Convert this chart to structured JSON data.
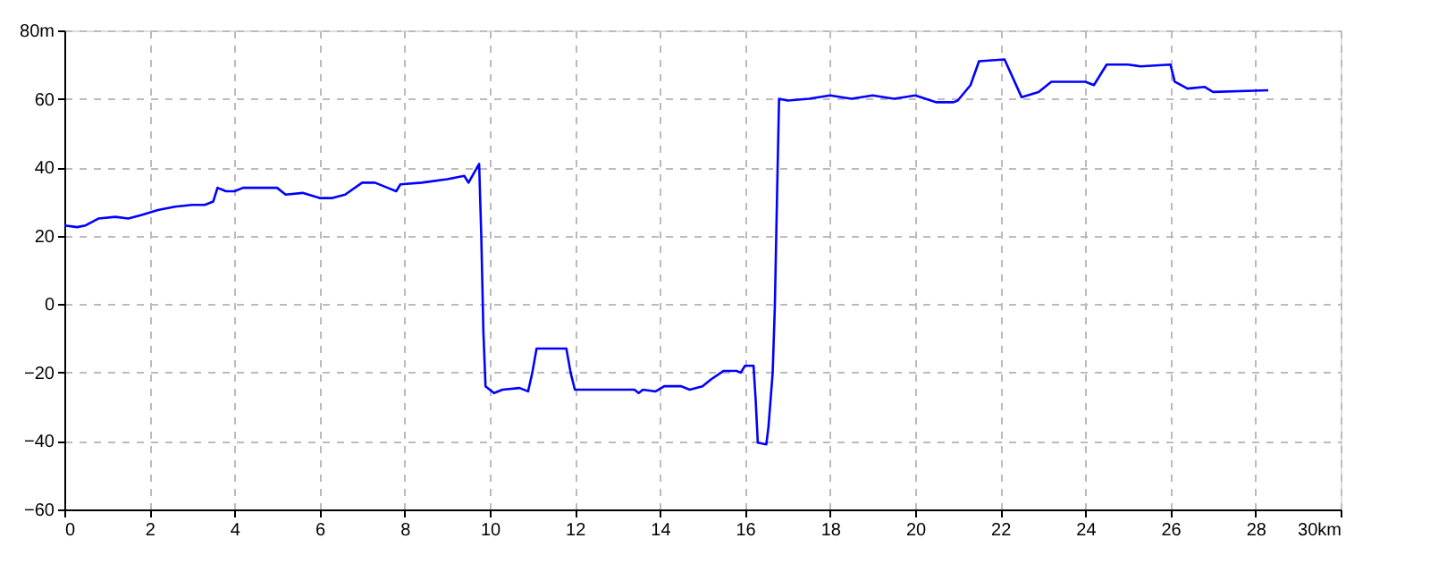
{
  "chart_data": {
    "type": "line",
    "x": [
      0,
      0.3,
      0.5,
      0.8,
      1.2,
      1.5,
      1.8,
      2.2,
      2.6,
      3.0,
      3.3,
      3.5,
      3.6,
      3.8,
      4.0,
      4.2,
      5.0,
      5.2,
      5.6,
      6.0,
      6.3,
      6.6,
      7.0,
      7.3,
      7.6,
      7.8,
      7.9,
      8.4,
      9.0,
      9.4,
      9.5,
      9.75,
      9.8,
      9.85,
      9.9,
      10.1,
      10.3,
      10.7,
      10.9,
      11.0,
      11.1,
      11.8,
      11.9,
      12.0,
      13.4,
      13.5,
      13.6,
      13.9,
      14.1,
      14.5,
      14.7,
      15.0,
      15.2,
      15.5,
      15.8,
      15.9,
      16.0,
      16.2,
      16.25,
      16.3,
      16.5,
      16.55,
      16.65,
      16.7,
      16.75,
      16.8,
      17.0,
      17.5,
      18.0,
      18.5,
      19.0,
      19.5,
      20.0,
      20.5,
      20.9,
      21.0,
      21.3,
      21.5,
      22.1,
      22.5,
      22.9,
      23.2,
      24.0,
      24.2,
      24.5,
      25.0,
      25.3,
      26.0,
      26.1,
      26.4,
      26.8,
      27.0,
      28.3
    ],
    "series": [
      {
        "color": "#0000ff",
        "values": [
          23,
          22.5,
          23,
          25,
          25.5,
          25,
          26,
          27.5,
          28.5,
          29,
          29,
          30,
          34,
          33,
          33,
          34,
          34,
          32,
          32.5,
          31,
          31,
          32,
          35.5,
          35.5,
          34,
          33,
          35,
          35.5,
          36.5,
          37.5,
          35.5,
          41,
          20,
          -8,
          -24,
          -26,
          -25,
          -24.5,
          -25.5,
          -20,
          -13,
          -13,
          -20,
          -25,
          -25,
          -26,
          -25,
          -25.5,
          -24,
          -24,
          -25,
          -24,
          -22,
          -19.5,
          -19.5,
          -20,
          -18,
          -18,
          -28,
          -40.5,
          -41,
          -36,
          -20,
          -1,
          30,
          60,
          59.5,
          60,
          61,
          60,
          61,
          60,
          61,
          59,
          59,
          59.5,
          64,
          71,
          71.5,
          60.5,
          62,
          65,
          65,
          64,
          70,
          70,
          69.5,
          70,
          65,
          63,
          63.5,
          62,
          62.5
        ]
      }
    ],
    "xlim": [
      0,
      30
    ],
    "ylim": [
      -60,
      80
    ],
    "xticks": [
      0,
      2,
      4,
      6,
      8,
      10,
      12,
      14,
      16,
      18,
      20,
      22,
      24,
      26,
      28,
      {
        "value": 30,
        "label": "30km"
      }
    ],
    "yticks": [
      -60,
      -40,
      -20,
      0,
      20,
      40,
      60,
      {
        "value": 80,
        "label": "80m"
      }
    ],
    "grid": true,
    "line_style": "solid"
  }
}
